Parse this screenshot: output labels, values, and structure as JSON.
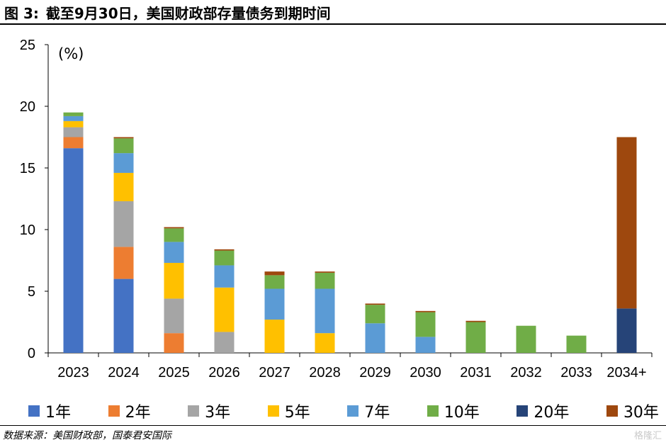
{
  "header": {
    "title": "图 3:",
    "subtitle": "截至9月30日，美国财政部存量债务到期时间"
  },
  "footer": {
    "source": "数据来源：美国财政部，国泰君安国际",
    "watermark": "格隆汇"
  },
  "chart_data": {
    "type": "bar",
    "stacked": true,
    "unit_label": "(%)",
    "ylim": [
      0,
      25
    ],
    "yticks": [
      "0",
      "5",
      "10",
      "15",
      "20",
      "25"
    ],
    "grid": false,
    "legend_position": "bottom",
    "categories": [
      "2023",
      "2024",
      "2025",
      "2026",
      "2027",
      "2028",
      "2029",
      "2030",
      "2031",
      "2032",
      "2033",
      "2034+"
    ],
    "series": [
      {
        "name": "1年",
        "color": "#4472C4",
        "values": [
          16.6,
          6.0,
          0,
          0,
          0,
          0,
          0,
          0,
          0,
          0,
          0,
          0
        ]
      },
      {
        "name": "2年",
        "color": "#ED7D31",
        "values": [
          0.9,
          2.6,
          1.6,
          0,
          0,
          0,
          0,
          0,
          0,
          0,
          0,
          0
        ]
      },
      {
        "name": "3年",
        "color": "#A5A5A5",
        "values": [
          0.8,
          3.7,
          2.8,
          1.7,
          0,
          0,
          0,
          0,
          0,
          0,
          0,
          0
        ]
      },
      {
        "name": "5年",
        "color": "#FFC000",
        "values": [
          0.5,
          2.3,
          2.9,
          3.6,
          2.7,
          1.6,
          0,
          0,
          0,
          0,
          0,
          0
        ]
      },
      {
        "name": "7年",
        "color": "#5B9BD5",
        "values": [
          0.4,
          1.6,
          1.7,
          1.8,
          2.5,
          3.6,
          2.4,
          1.3,
          0,
          0,
          0,
          0
        ]
      },
      {
        "name": "10年",
        "color": "#70AD47",
        "values": [
          0.3,
          1.2,
          1.1,
          1.2,
          1.1,
          1.3,
          1.5,
          2.0,
          2.5,
          2.2,
          1.4,
          0
        ]
      },
      {
        "name": "20年",
        "color": "#264478",
        "values": [
          0,
          0,
          0,
          0,
          0,
          0,
          0,
          0,
          0,
          0,
          0,
          3.6
        ]
      },
      {
        "name": "30年",
        "color": "#9E480E",
        "values": [
          0,
          0.1,
          0.1,
          0.1,
          0.3,
          0.1,
          0.1,
          0.1,
          0.1,
          0,
          0,
          13.9
        ]
      }
    ]
  }
}
